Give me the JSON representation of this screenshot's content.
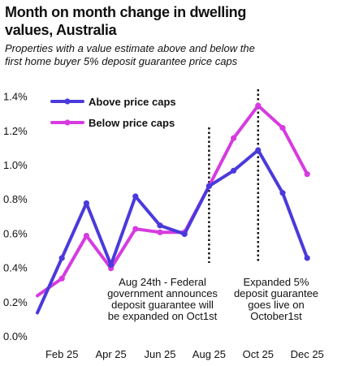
{
  "title_line1": "Month on month change in dwelling",
  "title_line2": "values, Australia",
  "subtitle_line1": "Properties with a value estimate above and below the",
  "subtitle_line2": "first home buyer 5% deposit guarantee price caps",
  "chart_data": {
    "type": "line",
    "x": [
      "Jan 25",
      "Feb 25",
      "Mar 25",
      "Apr 25",
      "May 25",
      "Jun 25",
      "Jul 25",
      "Aug 25",
      "Sep 25",
      "Oct 25",
      "Nov 25",
      "Dec 25"
    ],
    "x_tick_labels": [
      "Feb 25",
      "Apr 25",
      "Jun 25",
      "Aug 25",
      "Oct 25",
      "Dec 25"
    ],
    "y_tick_labels": [
      "0.0%",
      "0.2%",
      "0.4%",
      "0.6%",
      "0.8%",
      "1.0%",
      "1.2%",
      "1.4%"
    ],
    "ylim": [
      0,
      1.45
    ],
    "series": [
      {
        "name": "Above price caps",
        "color": "#4a3adb",
        "values": [
          0.14,
          0.46,
          0.78,
          0.42,
          0.82,
          0.65,
          0.6,
          0.88,
          0.97,
          1.09,
          0.84,
          0.46
        ]
      },
      {
        "name": "Below price caps",
        "color": "#d63be0",
        "values": [
          0.24,
          0.34,
          0.59,
          0.4,
          0.63,
          0.61,
          0.61,
          0.88,
          1.16,
          1.35,
          1.22,
          0.95
        ]
      }
    ],
    "annotations": [
      {
        "x": "Aug 25",
        "lines": [
          "Aug 24th - Federal",
          "government announces",
          "deposit guarantee will",
          "be expanded on Oct1st"
        ]
      },
      {
        "x": "Oct 25",
        "lines": [
          "Expanded 5%",
          "deposit guarantee",
          "goes live on",
          "October1st"
        ]
      }
    ],
    "grid": false,
    "legend": "top-left"
  }
}
